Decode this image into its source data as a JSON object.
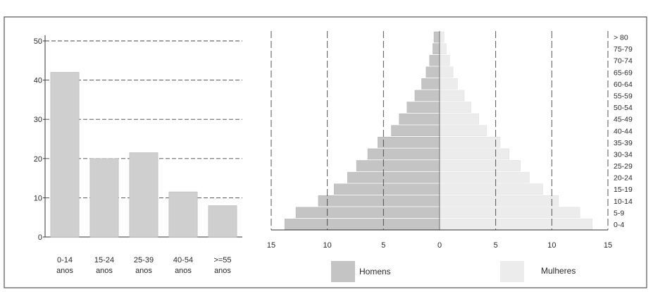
{
  "chart_data": [
    {
      "type": "bar",
      "categories": [
        [
          "0-14",
          "anos"
        ],
        [
          "15-24",
          "anos"
        ],
        [
          "25-39",
          "anos"
        ],
        [
          "40-54",
          "anos"
        ],
        [
          ">=55",
          "anos"
        ]
      ],
      "values": [
        42,
        20,
        21.5,
        11.5,
        8
      ],
      "ylim": [
        0,
        50
      ],
      "yticks": [
        0,
        10,
        20,
        30,
        40,
        50
      ],
      "grid": true,
      "colors": {
        "bar": "#cfcfcf",
        "grid": "#444444"
      }
    },
    {
      "type": "bar",
      "orientation": "horizontal-population-pyramid",
      "age_groups": [
        "0-4",
        "5-9",
        "10-14",
        "15-19",
        "20-24",
        "25-29",
        "30-34",
        "35-39",
        "40-44",
        "45-49",
        "50-54",
        "55-59",
        "60-64",
        "65-69",
        "70-74",
        "75-79",
        "> 80"
      ],
      "series": [
        {
          "name": "Homens",
          "values": [
            13.8,
            12.8,
            10.8,
            9.4,
            8.2,
            7.4,
            6.4,
            5.5,
            4.3,
            3.6,
            2.9,
            2.2,
            1.6,
            1.2,
            0.9,
            0.6,
            0.5
          ],
          "color": "#c4c4c4"
        },
        {
          "name": "Mulheres",
          "values": [
            13.6,
            12.5,
            10.6,
            9.2,
            8.0,
            7.2,
            6.2,
            5.4,
            4.2,
            3.5,
            2.8,
            2.2,
            1.6,
            1.2,
            0.9,
            0.6,
            0.4
          ],
          "color": "#ececec"
        }
      ],
      "xlim": [
        -15,
        15
      ],
      "xticks": [
        "15",
        "10",
        "5",
        "0",
        "5",
        "10",
        "15"
      ],
      "grid": true,
      "legend_position": "bottom"
    }
  ]
}
